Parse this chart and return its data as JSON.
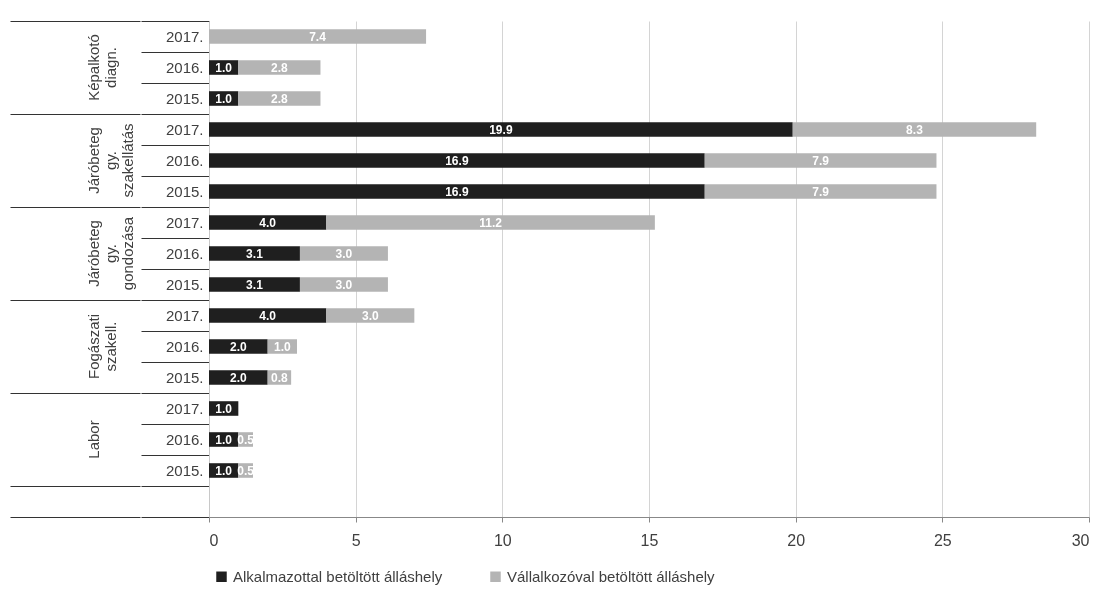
{
  "chart_data": {
    "type": "bar",
    "orientation": "horizontal",
    "stacked": true,
    "categories": [
      "2017.",
      "2016.",
      "2015.",
      "2017.",
      "2016.",
      "2015.",
      "2017.",
      "2016.",
      "2015.",
      "2017.",
      "2016.",
      "2015.",
      "2017.",
      "2016.",
      "2015.",
      null
    ],
    "series": [
      {
        "name": "Alkalmazottal betöltött álláshely",
        "color": "#1f1f1f",
        "values": [
          null,
          1.0,
          1.0,
          19.9,
          16.9,
          16.9,
          4.0,
          3.1,
          3.1,
          4.0,
          2.0,
          2.0,
          1.0,
          1.0,
          1.0,
          null
        ],
        "value_labels": [
          null,
          "1.0",
          "1.0",
          "19.9",
          "16.9",
          "16.9",
          "4.0",
          "3.1",
          "3.1",
          "4.0",
          "2.0",
          "2.0",
          "1.0",
          "1.0",
          "1.0",
          null
        ]
      },
      {
        "name": "Vállalkozóval betöltött álláshely",
        "color": "#b4b4b4",
        "values": [
          7.4,
          2.8,
          2.8,
          8.3,
          7.9,
          7.9,
          11.2,
          3.0,
          3.0,
          3.0,
          1.0,
          0.8,
          null,
          0.5,
          0.5,
          null
        ],
        "value_labels": [
          "7.4",
          "2.8",
          "2.8",
          "8.3",
          "7.9",
          "7.9",
          "11.2",
          "3.0",
          "3.0",
          "3.0",
          "1.0",
          "0.8",
          null,
          "0.5",
          "0.5",
          null
        ]
      }
    ],
    "xlim": [
      0,
      30
    ],
    "xticks": [
      0,
      5,
      10,
      15,
      20,
      25,
      30
    ],
    "grid": "x",
    "legend": "bottom",
    "annotations": [
      "Képalkotó diagn.",
      "Járóbeteg gy. szakellátás",
      "Járóbeteg gy. gondozása",
      "Fogászati szakell.",
      "Labor"
    ]
  }
}
